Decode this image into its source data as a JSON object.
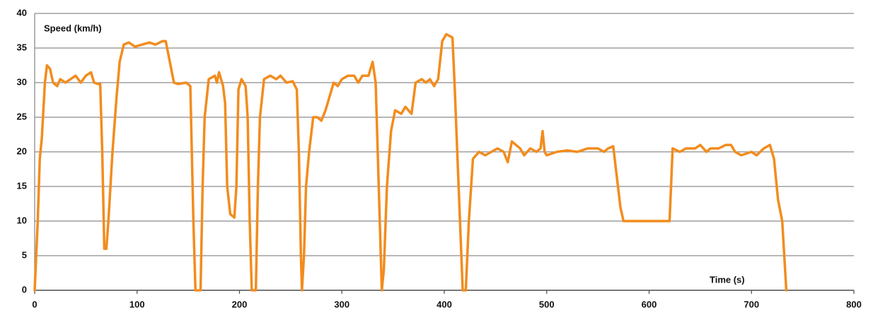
{
  "chart_data": {
    "type": "line",
    "y_label": "Speed (km/h)",
    "x_label": "Time (s)",
    "x": [
      0,
      3,
      5,
      7,
      10,
      12,
      15,
      18,
      22,
      25,
      30,
      35,
      40,
      45,
      50,
      55,
      58,
      62,
      64,
      66,
      68,
      70,
      72,
      76,
      80,
      83,
      87,
      92,
      98,
      105,
      112,
      118,
      125,
      128,
      132,
      136,
      140,
      148,
      152,
      155,
      157,
      162,
      164,
      166,
      170,
      176,
      178,
      180,
      184,
      186,
      188,
      191,
      195,
      197,
      199,
      202,
      206,
      208,
      210,
      212,
      216,
      218,
      220,
      224,
      230,
      236,
      240,
      246,
      252,
      256,
      258,
      260,
      261,
      263,
      265,
      268,
      272,
      276,
      280,
      284,
      288,
      292,
      296,
      300,
      306,
      312,
      316,
      320,
      326,
      330,
      333,
      336,
      339,
      341,
      344,
      348,
      352,
      358,
      362,
      368,
      372,
      378,
      382,
      386,
      390,
      394,
      398,
      402,
      408,
      410,
      414,
      418,
      421,
      424,
      428,
      434,
      440,
      446,
      452,
      458,
      462,
      466,
      470,
      474,
      478,
      484,
      490,
      494,
      496,
      498,
      500,
      510,
      520,
      530,
      540,
      550,
      556,
      560,
      565,
      568,
      572,
      575,
      585,
      595,
      605,
      612,
      620,
      623,
      630,
      636,
      645,
      650,
      656,
      660,
      668,
      675,
      680,
      684,
      690,
      700,
      705,
      712,
      718,
      722,
      726,
      730,
      732,
      734
    ],
    "series": [
      {
        "color": "#f28c1e",
        "values": [
          0,
          10,
          19,
          22,
          30,
          32.5,
          32,
          30,
          29.5,
          30.5,
          30,
          30.5,
          31,
          30,
          31,
          31.5,
          30,
          29.8,
          29.8,
          20,
          6,
          6,
          10,
          20,
          28,
          33,
          35.5,
          35.8,
          35.2,
          35.5,
          35.8,
          35.5,
          36,
          36,
          33,
          30,
          29.8,
          30,
          29.5,
          10,
          0,
          0,
          15,
          25,
          30.5,
          31,
          30,
          31.5,
          29.5,
          27,
          15,
          11,
          10.5,
          15,
          29,
          30.5,
          29.5,
          25,
          10,
          0,
          0,
          15,
          25,
          30.5,
          31,
          30.5,
          31,
          30,
          30.2,
          29,
          20,
          5,
          0,
          5,
          15,
          20,
          25,
          25,
          24.5,
          26,
          28,
          30,
          29.5,
          30.5,
          31,
          31,
          30,
          31,
          31,
          33,
          30,
          15,
          0,
          3,
          15,
          23,
          26,
          25.5,
          26.5,
          25.5,
          30,
          30.5,
          30,
          30.5,
          29.5,
          30.5,
          36,
          37,
          36.5,
          30,
          15,
          0,
          0,
          10,
          19,
          20,
          19.5,
          20,
          20.5,
          20,
          18.5,
          21.5,
          21,
          20.5,
          19.5,
          20.5,
          20,
          20.5,
          23,
          20,
          19.5,
          20,
          20.2,
          20,
          20.5,
          20.5,
          20,
          20.5,
          20.8,
          17,
          12,
          10,
          10,
          10,
          10,
          10,
          10,
          20.5,
          20,
          20.5,
          20.5,
          21,
          20,
          20.5,
          20.5,
          21,
          21,
          20,
          19.5,
          20,
          19.5,
          20.5,
          21,
          19,
          13,
          10,
          5,
          0
        ]
      }
    ],
    "xlim": [
      0,
      800
    ],
    "xticks": [
      0,
      100,
      200,
      300,
      400,
      500,
      600,
      700,
      800
    ],
    "ylim": [
      0,
      40
    ],
    "yticks": [
      0,
      5,
      10,
      15,
      20,
      25,
      30,
      35,
      40
    ],
    "grid": true
  }
}
